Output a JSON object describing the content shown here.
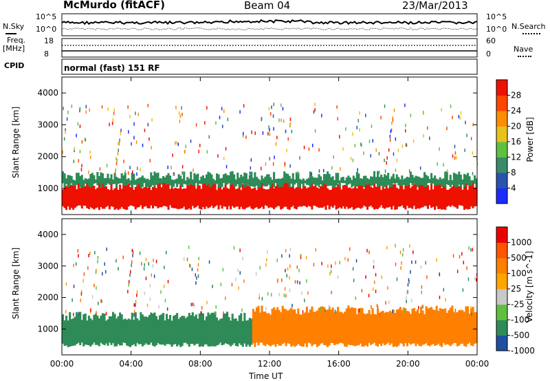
{
  "header": {
    "station": "McMurdo (fitACF)",
    "beam": "Beam 04",
    "date": "23/Mar/2013"
  },
  "noise_panel": {
    "left_label": "N.Sky",
    "right_label": "N.Search",
    "left_ticks": [
      "10^5",
      "10^0"
    ],
    "right_ticks": [
      "10^5",
      "10^0"
    ]
  },
  "freq_panel": {
    "left_label_line1": "Freq.",
    "left_label_line2": "[MHz]",
    "left_ticks": [
      "18",
      "8"
    ],
    "right_label": "Nave",
    "right_ticks": [
      "60",
      "0"
    ]
  },
  "cpid_panel": {
    "label": "CPID",
    "text": "normal (fast) 151 RF"
  },
  "chart_data": [
    {
      "type": "heatmap",
      "parameter": "Power",
      "ylabel": "Slant Range [km]",
      "colorbar_label": "Power [dB]",
      "ylim": [
        180,
        4500
      ],
      "yticks": [
        "1000",
        "2000",
        "3000",
        "4000"
      ],
      "xlim": [
        "00:00",
        "24:00"
      ],
      "colorbar_ticks": [
        "4",
        "8",
        "12",
        "16",
        "20",
        "24",
        "28"
      ],
      "colorbar_colors": [
        "#1a2cff",
        "#2a52b0",
        "#3a8a6a",
        "#5fc040",
        "#e8c21a",
        "#ff8c00",
        "#ff4500",
        "#ee1100"
      ],
      "bands": [
        {
          "x0": 0,
          "x1": 24,
          "y_low": 400,
          "y_high": 1100,
          "color": "#ee1100"
        },
        {
          "x0": 0,
          "x1": 24,
          "y_low": 1100,
          "y_high": 1400,
          "color": "#2e8b57"
        }
      ]
    },
    {
      "type": "heatmap",
      "parameter": "Velocity",
      "ylabel": "Slant Range [km]",
      "colorbar_label": "Velocity [m s^-1]",
      "ylim": [
        180,
        4500
      ],
      "yticks": [
        "1000",
        "2000",
        "3000",
        "4000"
      ],
      "xlim": [
        "00:00",
        "24:00"
      ],
      "colorbar_ticks": [
        "1000",
        "500",
        "100",
        "25",
        "-25",
        "-100",
        "-500",
        "-1000"
      ],
      "colorbar_colors": [
        "#1f4fa0",
        "#2e8b57",
        "#5fc040",
        "#c8c8c8",
        "#ffa500",
        "#ff8000",
        "#ff5500",
        "#ee0000"
      ],
      "bands": [
        {
          "x0": 0,
          "x1": 11,
          "y_low": 500,
          "y_high": 1400,
          "color": "#2e8b57"
        },
        {
          "x0": 11,
          "x1": 24,
          "y_low": 500,
          "y_high": 1600,
          "color": "#ff8000"
        }
      ]
    }
  ],
  "x_axis": {
    "tick_labels": [
      "00:00",
      "04:00",
      "08:00",
      "12:00",
      "16:00",
      "20:00",
      "00:00"
    ],
    "label": "Time UT"
  },
  "colors": {
    "power_main": "#ee1100",
    "power_edge": "#2e8b57",
    "velocity_green": "#2e8b57",
    "velocity_orange": "#ff8000",
    "velocity_gray": "#c8c8c8"
  }
}
